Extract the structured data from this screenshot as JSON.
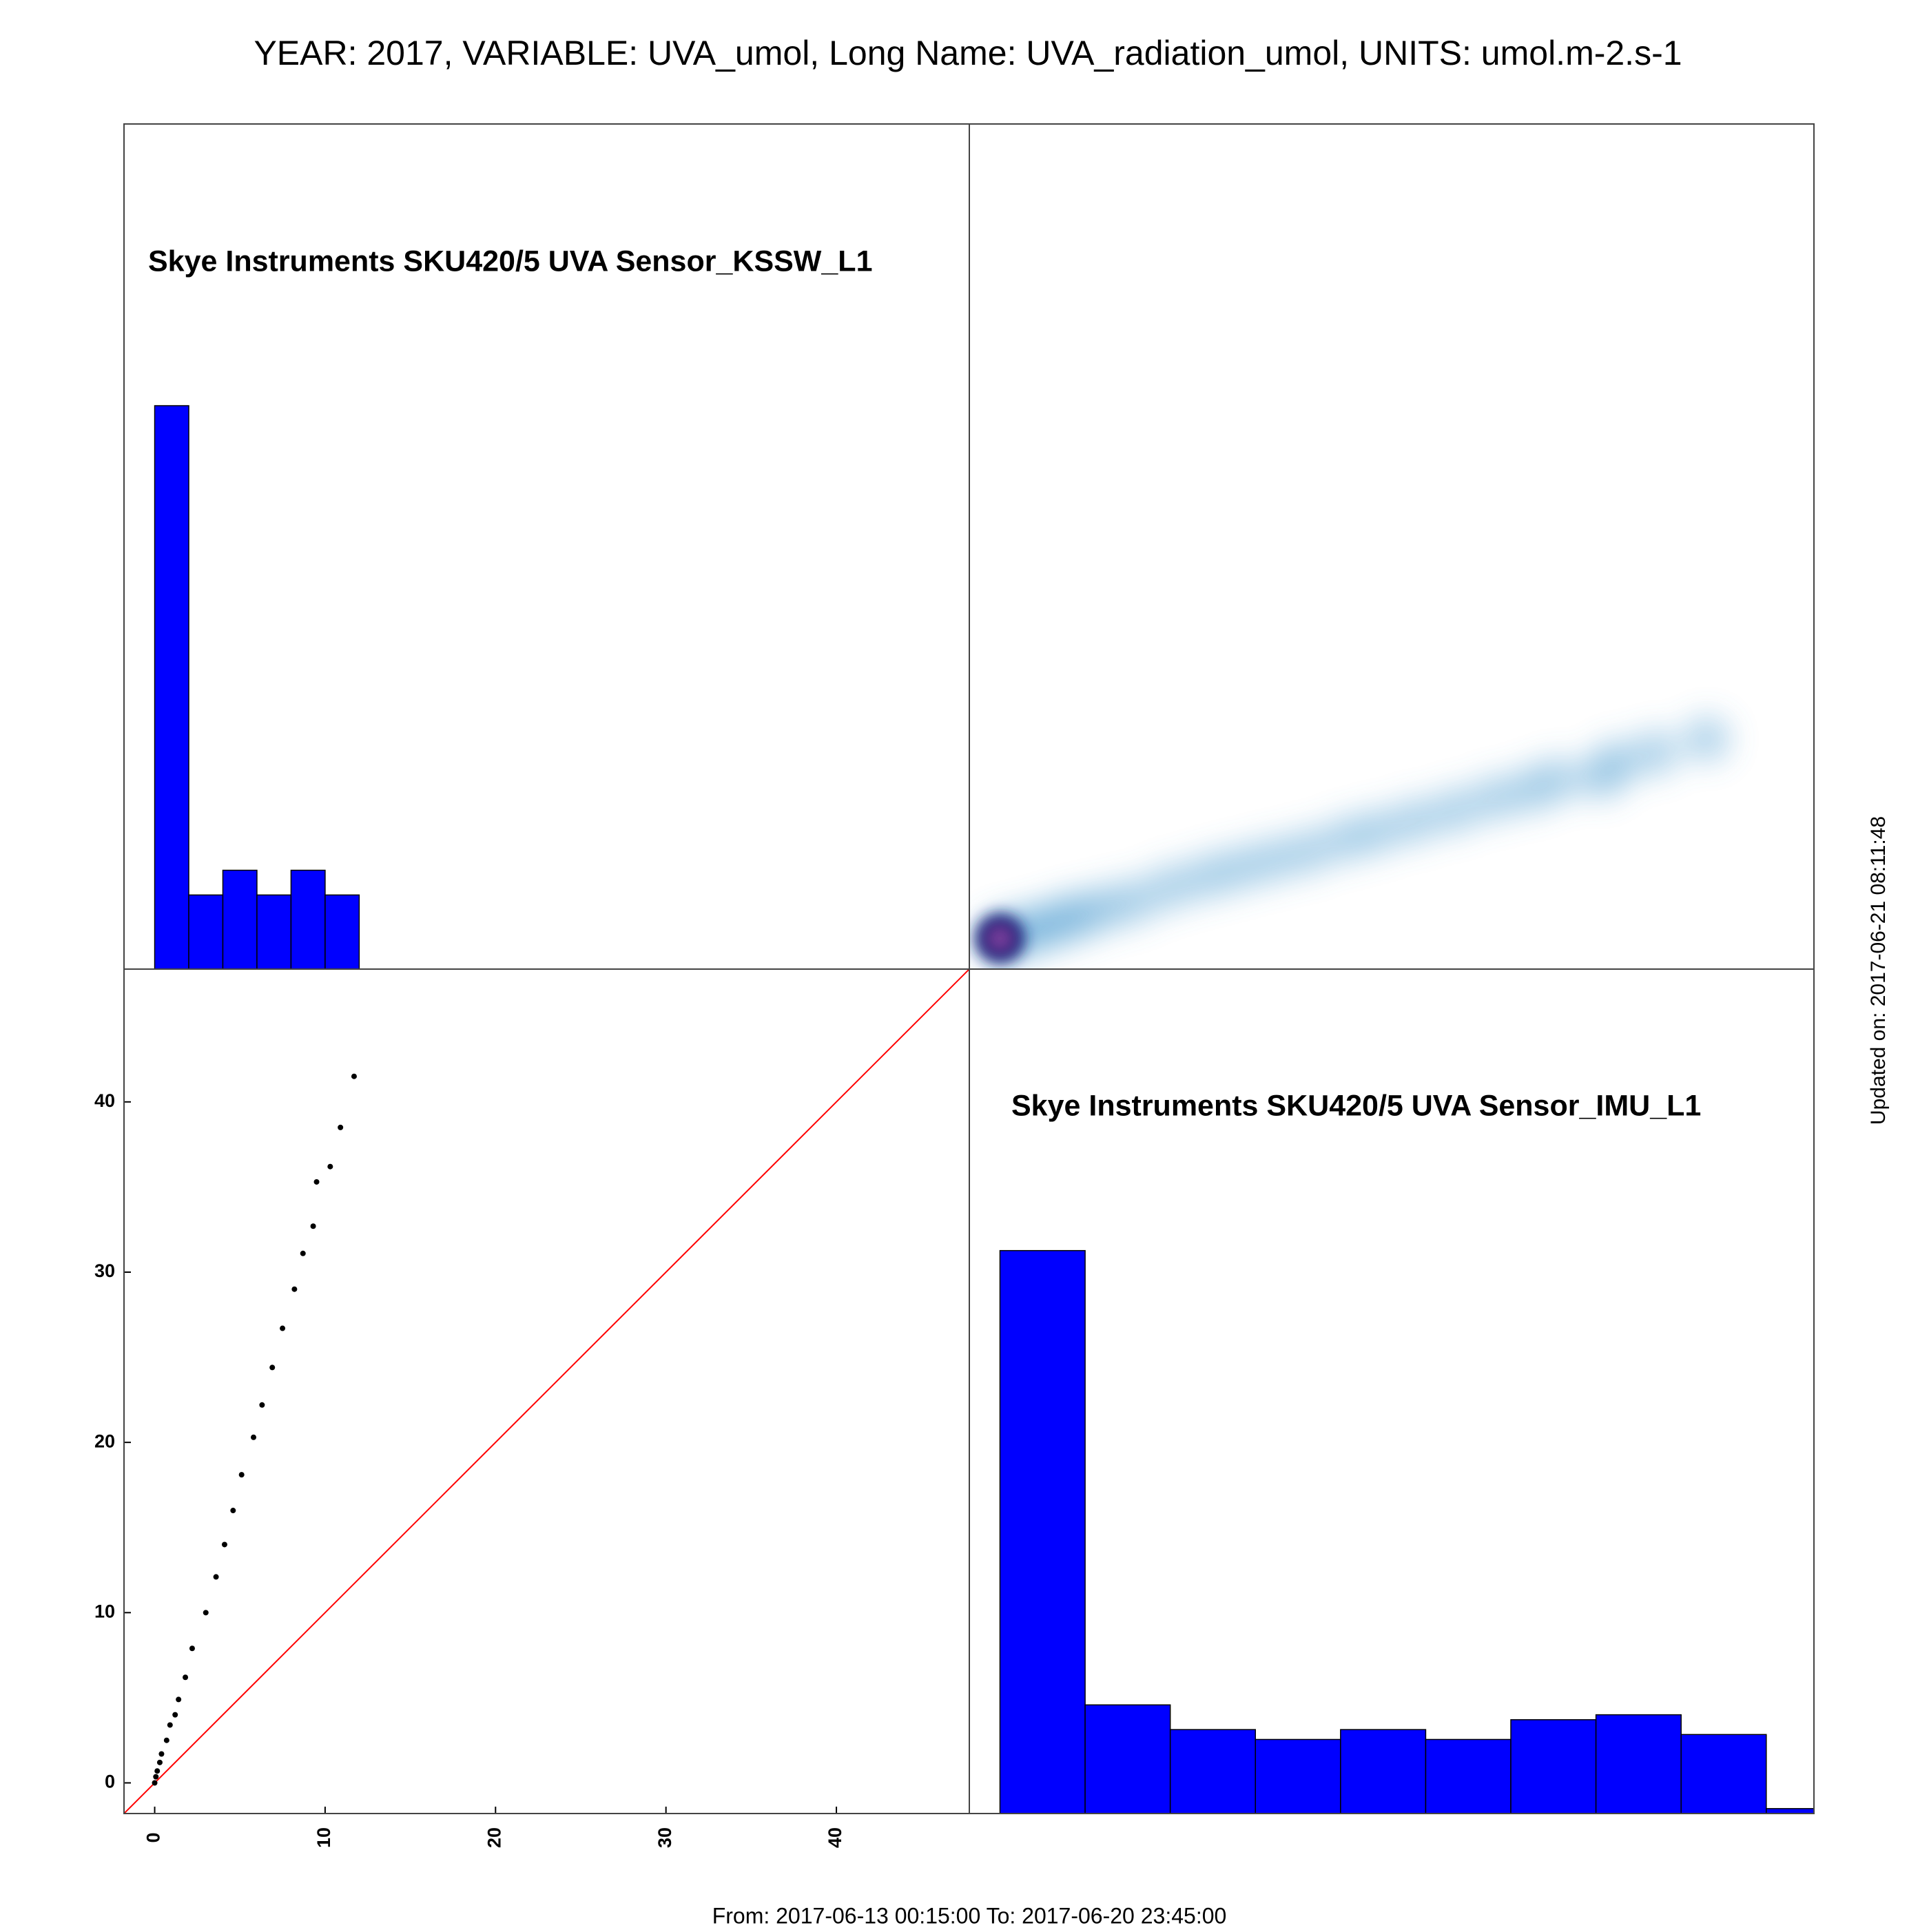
{
  "chart_data": {
    "type": "pairs",
    "title": "YEAR: 2017, VARIABLE: UVA_umol, Long Name: UVA_radiation_umol, UNITS: umol.m-2.s-1",
    "footer": "From: 2017-06-13 00:15:00 To: 2017-06-20 23:45:00",
    "updated": "Updated on: 2017-06-21 08:11:48",
    "variables": [
      "Skye Instruments SKU420/5 UVA Sensor_KSSW_L1",
      "Skye Instruments SKU420/5 UVA Sensor_IMU_L1"
    ],
    "scatter": {
      "x": [
        0,
        0.07,
        0.15,
        0.3,
        0.4,
        0.7,
        0.9,
        1.2,
        1.4,
        1.8,
        2.2,
        3.0,
        3.6,
        4.1,
        4.6,
        5.1,
        5.8,
        6.3,
        6.9,
        7.5,
        8.2,
        8.7,
        9.3,
        9.5,
        10.3,
        10.9,
        11.7
      ],
      "y": [
        0,
        0.36,
        0.7,
        1.2,
        1.7,
        2.5,
        3.4,
        4.0,
        4.9,
        6.2,
        7.9,
        10.0,
        12.1,
        14.0,
        16.0,
        18.1,
        20.3,
        22.2,
        24.4,
        26.7,
        29.0,
        31.1,
        32.7,
        35.3,
        36.2,
        38.5,
        41.5
      ],
      "color": "#000000"
    },
    "xlim": [
      -1.8,
      47.8
    ],
    "ylim": [
      -1.8,
      47.8
    ],
    "xticks": [
      0,
      10,
      20,
      30,
      40
    ],
    "yticks": [
      0,
      10,
      20,
      30,
      40
    ],
    "histograms": [
      {
        "bins": [
          0,
          2,
          4,
          6,
          8,
          10,
          12
        ],
        "counts": [
          114,
          15,
          20,
          15,
          20,
          15
        ]
      },
      {
        "bins": [
          0,
          5,
          10,
          15,
          20,
          25,
          30,
          35,
          40,
          45,
          50
        ],
        "counts": [
          114,
          22,
          17,
          15,
          17,
          15,
          19,
          20,
          16,
          1
        ]
      }
    ],
    "hist_ylim": [
      0,
      171
    ],
    "hist_color": "#0000ff",
    "identity_color": "#ff0000",
    "density_colors": [
      "#4a9bd0",
      "#13237a",
      "#7b3f9e"
    ]
  }
}
